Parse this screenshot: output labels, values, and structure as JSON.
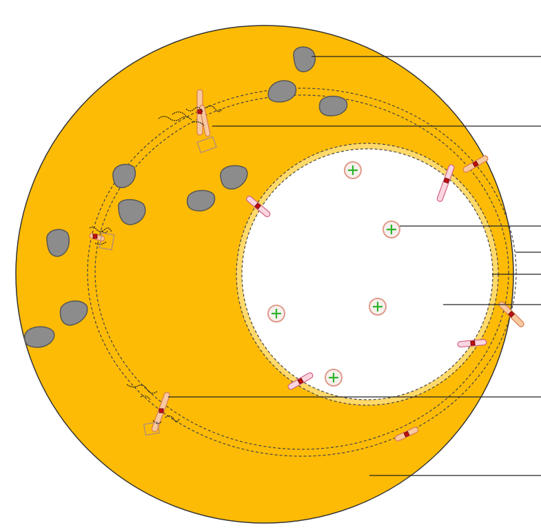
{
  "diagram": {
    "colors": {
      "outer_fill": "#FDBB06",
      "outer_stroke": "#333333",
      "inner_fill": "#FFFFFF",
      "granule_fill": "#8C8C8C",
      "granule_stroke": "#555555",
      "marker_ring": "#E09A8A",
      "marker_cross": "#2BB52B",
      "leader_line": "#222222",
      "dashed": "#444444"
    },
    "labels": [],
    "legend": []
  }
}
